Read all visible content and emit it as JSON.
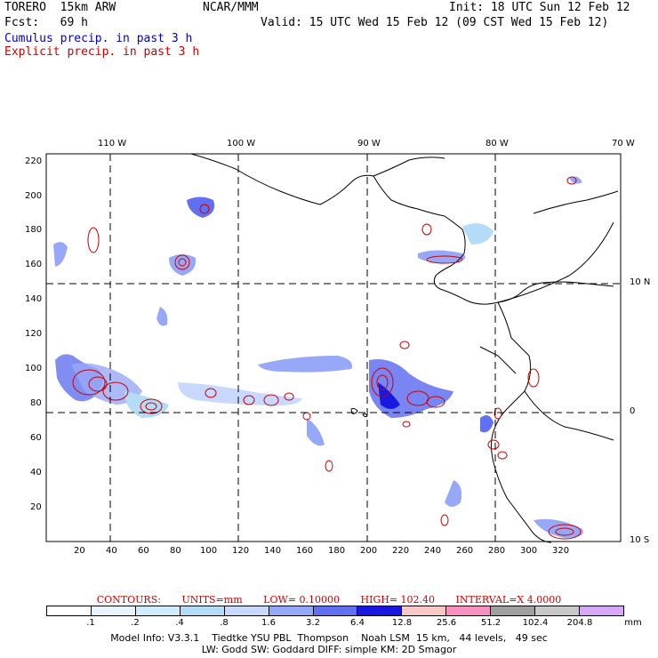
{
  "header": {
    "model": "TORERO  15km ARW",
    "org": "NCAR/MMM",
    "init": "Init: 18 UTC Sun 12 Feb 12",
    "fcst": "Fcst:   69 h",
    "valid": "Valid: 15 UTC Wed 15 Feb 12 (09 CST Wed 15 Feb 12)",
    "legend_cumulus": "Cumulus precip. in past 3 h",
    "legend_explicit": "Explicit precip. in past 3 h"
  },
  "map": {
    "lon_labels": [
      "110 W",
      "100 W",
      "90 W",
      "80 W",
      "70 W"
    ],
    "lat_labels": [
      "10 N",
      "0",
      "10 S"
    ],
    "y_ticks": [
      "220",
      "200",
      "180",
      "160",
      "140",
      "120",
      "100",
      "80",
      "60",
      "40",
      "20"
    ],
    "x_ticks": [
      "20",
      "40",
      "60",
      "80",
      "100",
      "120",
      "140",
      "160",
      "180",
      "200",
      "220",
      "240",
      "260",
      "280",
      "300",
      "320"
    ]
  },
  "contours": {
    "prefix": "CONTOURS:",
    "units": "UNITS=mm",
    "low": "LOW= 0.10000",
    "high": "HIGH= 102.40",
    "interval": "INTERVAL=X  4.0000"
  },
  "scale": {
    "labels": [
      ".1",
      ".2",
      ".4",
      ".8",
      "1.6",
      "3.2",
      "6.4",
      "12.8",
      "25.6",
      "51.2",
      "102.4",
      "204.8"
    ],
    "unit": "mm",
    "colors": [
      "#ffffff",
      "#e8f4ff",
      "#d0ecff",
      "#b4dcf8",
      "#c8d8ff",
      "#98a8f8",
      "#6070f0",
      "#1818e0",
      "#f8c8c8",
      "#f890c0",
      "#a0a0a0",
      "#c8c8c8",
      "#d8a8f8"
    ]
  },
  "model_info": {
    "line1": "Model Info: V3.3.1    Tiedtke YSU PBL  Thompson    Noah LSM  15 km,   44 levels,   49 sec",
    "line2": "LW: Godd SW: Goddard DIFF: simple KM: 2D Smagor"
  }
}
